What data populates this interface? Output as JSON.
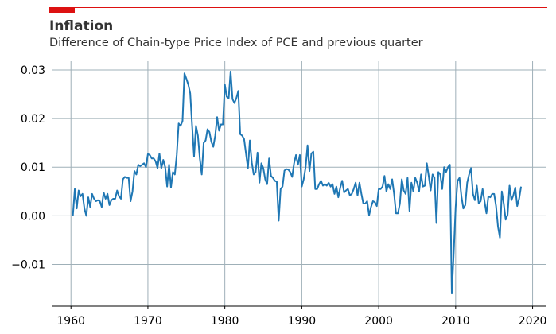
{
  "chart_data": {
    "type": "line",
    "title": "Inflation",
    "subtitle": "Difference of Chain-type Price Index of PCE and previous quarter",
    "xlabel": "",
    "ylabel": "",
    "xlim": [
      1957.6,
      2021.7
    ],
    "ylim": [
      -0.0186,
      0.0318
    ],
    "x_ticks": [
      1960,
      1970,
      1980,
      1990,
      2000,
      2010,
      2020
    ],
    "y_ticks": [
      -0.01,
      0.0,
      0.01,
      0.02,
      0.03
    ],
    "x_tick_labels": [
      "1960",
      "1970",
      "1980",
      "1990",
      "2000",
      "2010",
      "2020"
    ],
    "y_tick_labels": [
      "−0.01",
      "0.00",
      "0.01",
      "0.02",
      "0.03"
    ],
    "grid": true,
    "series": [
      {
        "x_start": 1960.25,
        "x_step": 0.25,
        "values": [
          0.0,
          0.0055,
          0.0015,
          0.0052,
          0.004,
          0.0045,
          0.0015,
          0.0,
          0.0038,
          0.0018,
          0.0045,
          0.0035,
          0.003,
          0.0032,
          0.003,
          0.0018,
          0.0048,
          0.0035,
          0.0045,
          0.0022,
          0.0032,
          0.0035,
          0.0035,
          0.0052,
          0.004,
          0.0035,
          0.0075,
          0.008,
          0.0078,
          0.0078,
          0.003,
          0.005,
          0.0092,
          0.0085,
          0.0105,
          0.0102,
          0.0105,
          0.0108,
          0.01,
          0.0127,
          0.0125,
          0.0118,
          0.0118,
          0.0112,
          0.0098,
          0.0128,
          0.0098,
          0.0115,
          0.01,
          0.006,
          0.0105,
          0.0058,
          0.009,
          0.0085,
          0.0125,
          0.019,
          0.0185,
          0.0195,
          0.0293,
          0.0282,
          0.027,
          0.0252,
          0.0185,
          0.0122,
          0.0185,
          0.0165,
          0.0118,
          0.0085,
          0.015,
          0.0155,
          0.0178,
          0.0172,
          0.0152,
          0.0142,
          0.0165,
          0.0203,
          0.0175,
          0.0188,
          0.0188,
          0.027,
          0.0245,
          0.0242,
          0.0297,
          0.024,
          0.0232,
          0.0242,
          0.0257,
          0.0168,
          0.0165,
          0.0158,
          0.0128,
          0.0098,
          0.0155,
          0.011,
          0.0085,
          0.009,
          0.013,
          0.0068,
          0.0108,
          0.0098,
          0.0075,
          0.0065,
          0.0118,
          0.0082,
          0.0078,
          0.0072,
          0.007,
          -0.001,
          0.0055,
          0.006,
          0.0093,
          0.0096,
          0.0095,
          0.009,
          0.008,
          0.0108,
          0.0125,
          0.0105,
          0.0125,
          0.006,
          0.0075,
          0.01,
          0.0145,
          0.0092,
          0.0128,
          0.0132,
          0.0055,
          0.0055,
          0.0065,
          0.0072,
          0.0062,
          0.0065,
          0.0062,
          0.0068,
          0.006,
          0.0065,
          0.0045,
          0.006,
          0.0038,
          0.0058,
          0.0072,
          0.0048,
          0.0052,
          0.0055,
          0.0042,
          0.0045,
          0.0055,
          0.0068,
          0.0042,
          0.0068,
          0.0045,
          0.0025,
          0.0025,
          0.003,
          0.0001,
          0.0018,
          0.003,
          0.0028,
          0.002,
          0.0055,
          0.0055,
          0.006,
          0.0082,
          0.005,
          0.0065,
          0.0055,
          0.0075,
          0.0045,
          0.0005,
          0.0005,
          0.0025,
          0.0075,
          0.0052,
          0.0045,
          0.0078,
          0.001,
          0.0068,
          0.005,
          0.0078,
          0.0068,
          0.005,
          0.0085,
          0.006,
          0.0062,
          0.0108,
          0.0082,
          0.0052,
          0.0085,
          0.0078,
          -0.0015,
          0.009,
          0.0085,
          0.0055,
          0.01,
          0.009,
          0.01,
          0.0105,
          -0.016,
          -0.0075,
          0.0018,
          0.0072,
          0.0078,
          0.004,
          0.0015,
          0.0022,
          0.0068,
          0.0085,
          0.0098,
          0.0045,
          0.0032,
          0.0062,
          0.0025,
          0.003,
          0.0055,
          0.003,
          0.0005,
          0.004,
          0.0038,
          0.0045,
          0.0045,
          0.002,
          -0.0022,
          -0.0045,
          0.005,
          0.0025,
          -0.0008,
          0.0002,
          0.0062,
          0.0032,
          0.0042,
          0.0058,
          0.002,
          0.0035,
          0.006
        ]
      }
    ],
    "line_color": "#1f77b4",
    "accent_color": "#dd1111"
  }
}
